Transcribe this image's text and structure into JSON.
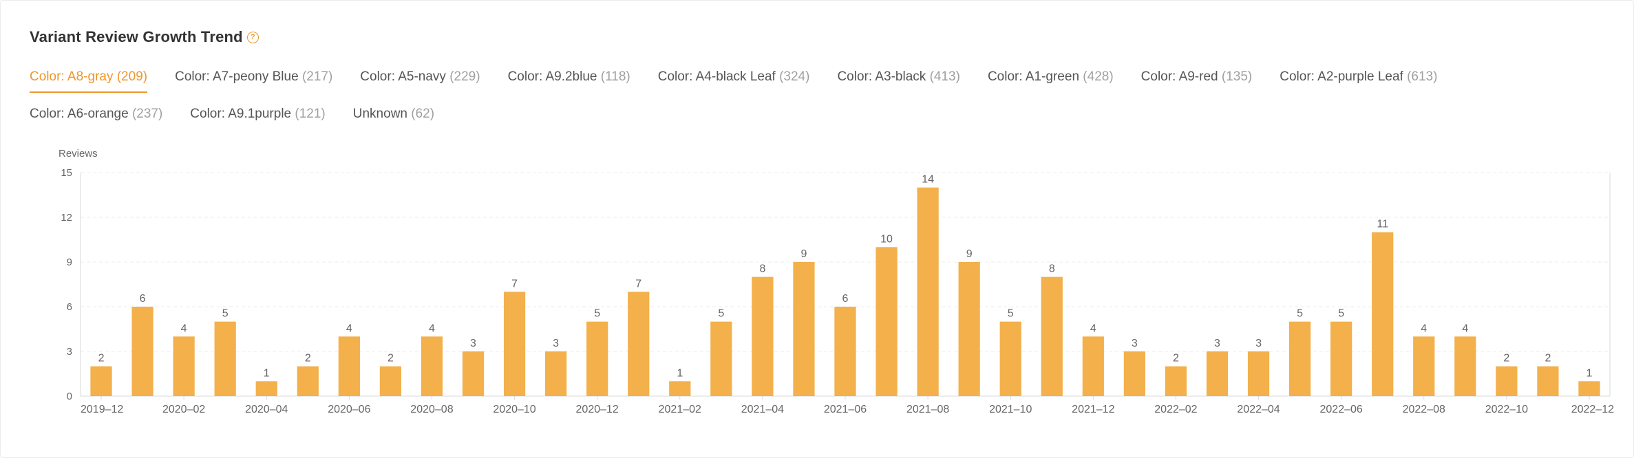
{
  "header": {
    "title": "Variant Review Growth Trend",
    "help_icon": "question-circle-icon"
  },
  "tabs": [
    {
      "label": "Color: A8-gray",
      "count": "(209)",
      "active": true
    },
    {
      "label": "Color: A7-peony Blue",
      "count": "(217)"
    },
    {
      "label": "Color: A5-navy",
      "count": "(229)"
    },
    {
      "label": "Color: A9.2blue",
      "count": "(118)"
    },
    {
      "label": "Color: A4-black Leaf",
      "count": "(324)"
    },
    {
      "label": "Color: A3-black",
      "count": "(413)"
    },
    {
      "label": "Color: A1-green",
      "count": "(428)"
    },
    {
      "label": "Color: A9-red",
      "count": "(135)"
    },
    {
      "label": "Color: A2-purple Leaf",
      "count": "(613)"
    },
    {
      "label": "Color: A6-orange",
      "count": "(237)"
    },
    {
      "label": "Color: A9.1purple",
      "count": "(121)"
    },
    {
      "label": "Unknown",
      "count": "(62)"
    }
  ],
  "colors": {
    "accent": "#f0962a",
    "bar": "#f3b04b"
  },
  "chart_data": {
    "type": "bar",
    "ylabel": "Reviews",
    "ylim": [
      0,
      15
    ],
    "yticks": [
      0,
      3,
      6,
      9,
      12,
      15
    ],
    "grid": true,
    "categories": [
      "2019-12",
      "2020-01",
      "2020-02",
      "2020-03",
      "2020-04",
      "2020-05",
      "2020-06",
      "2020-07",
      "2020-08",
      "2020-09",
      "2020-10",
      "2020-11",
      "2020-12",
      "2021-01",
      "2021-02",
      "2021-03",
      "2021-04",
      "2021-05",
      "2021-06",
      "2021-07",
      "2021-08",
      "2021-09",
      "2021-10",
      "2021-11",
      "2021-12",
      "2022-01",
      "2022-02",
      "2022-03",
      "2022-04",
      "2022-05",
      "2022-06",
      "2022-07",
      "2022-08",
      "2022-09",
      "2022-10",
      "2022-11",
      "2022-12"
    ],
    "values": [
      2,
      6,
      4,
      5,
      1,
      2,
      4,
      2,
      4,
      3,
      7,
      3,
      5,
      7,
      1,
      5,
      8,
      9,
      6,
      10,
      14,
      9,
      5,
      8,
      4,
      3,
      2,
      3,
      3,
      5,
      5,
      11,
      4,
      4,
      2,
      2,
      1
    ],
    "xtick_labels": [
      "2019–12",
      "2020–02",
      "2020–04",
      "2020–06",
      "2020–08",
      "2020–10",
      "2020–12",
      "2021–02",
      "2021–04",
      "2021–06",
      "2021–08",
      "2021–10",
      "2021–12",
      "2022–02",
      "2022–04",
      "2022–06",
      "2022–08",
      "2022–10",
      "2022–12"
    ],
    "xtick_every": 2
  }
}
